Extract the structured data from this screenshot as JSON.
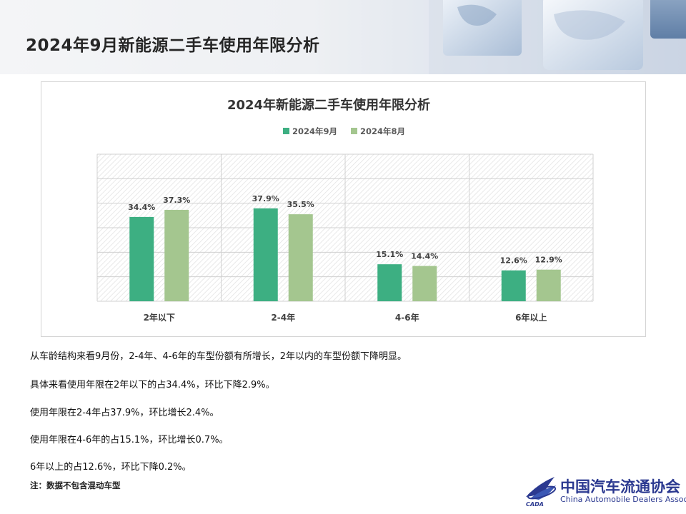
{
  "page": {
    "title": "2024年9月新能源二手车使用年限分析"
  },
  "colors": {
    "series_sep": "#3daf82",
    "series_aug": "#a4c68f",
    "title_text": "#262626",
    "logo_blue": "#2b3990"
  },
  "chart_data": {
    "type": "bar",
    "title": "2024年新能源二手车使用年限分析",
    "categories": [
      "2年以下",
      "2-4年",
      "4-6年",
      "6年以上"
    ],
    "series": [
      {
        "name": "2024年9月",
        "values": [
          34.4,
          37.9,
          15.1,
          12.6
        ],
        "labels": [
          "34.4%",
          "37.9%",
          "15.1%",
          "12.6%"
        ]
      },
      {
        "name": "2024年8月",
        "values": [
          37.3,
          35.5,
          14.4,
          12.9
        ],
        "labels": [
          "37.3%",
          "35.5%",
          "14.4%",
          "12.9%"
        ]
      }
    ],
    "ylim": [
      0,
      60
    ],
    "grid": true,
    "legend": "top-center",
    "xlabel": "",
    "ylabel": ""
  },
  "notes": [
    "从车龄结构来看9月份，2-4年、4-6年的车型份额有所增长，2年以内的车型份额下降明显。",
    "具体来看使用年限在2年以下的占34.4%，环比下降2.9%。",
    "使用年限在2-4年占37.9%，环比增长2.4%。",
    "使用年限在4-6年的占15.1%，环比增长0.7%。",
    "6年以上的占12.6%，环比下降0.2%。"
  ],
  "footnote": "注：数据不包含混动车型",
  "logo": {
    "name_cn": "中国汽车流通协会",
    "name_en": "China Automobile Dealers Association",
    "mark_text": "CADA"
  }
}
